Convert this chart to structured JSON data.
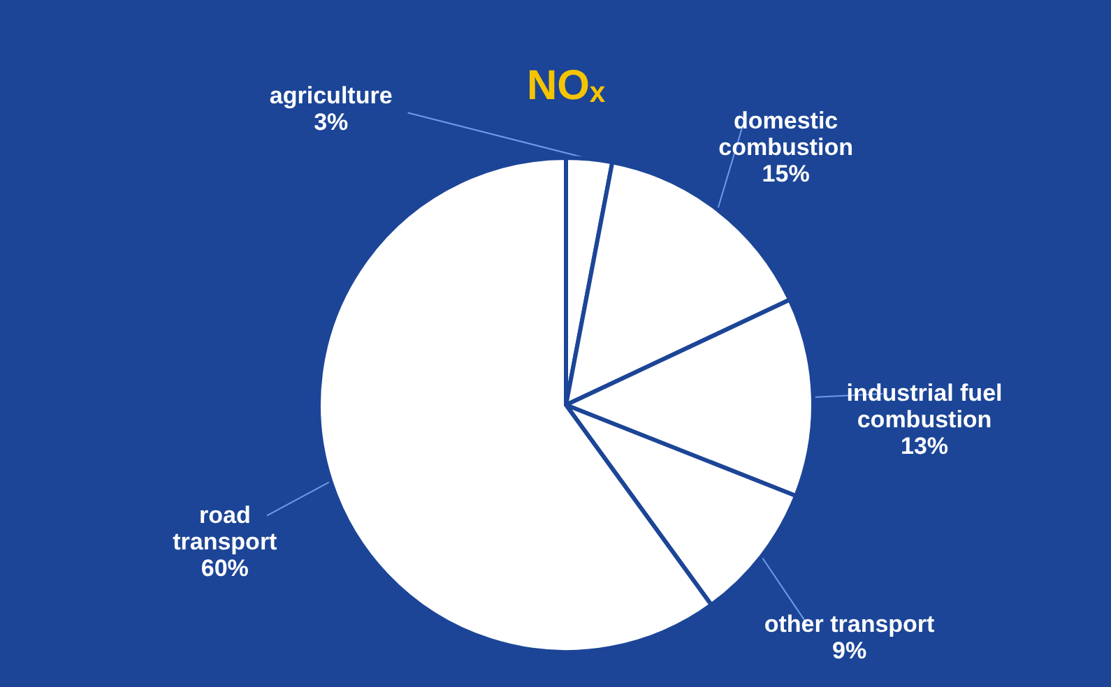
{
  "chart_data": {
    "type": "pie",
    "title": "NOₓ",
    "categories": [
      "agriculture",
      "domestic\ncombustion",
      "industrial fuel\ncombustion",
      "other transport",
      "road\ntransport"
    ],
    "values": [
      3,
      15,
      13,
      9,
      60
    ],
    "colors": [
      "#ffffff",
      "#ffffff",
      "#ffffff",
      "#ffffff",
      "#ffffff"
    ],
    "value_labels": [
      "3%",
      "15%",
      "13%",
      "9%",
      "60%"
    ]
  }
}
